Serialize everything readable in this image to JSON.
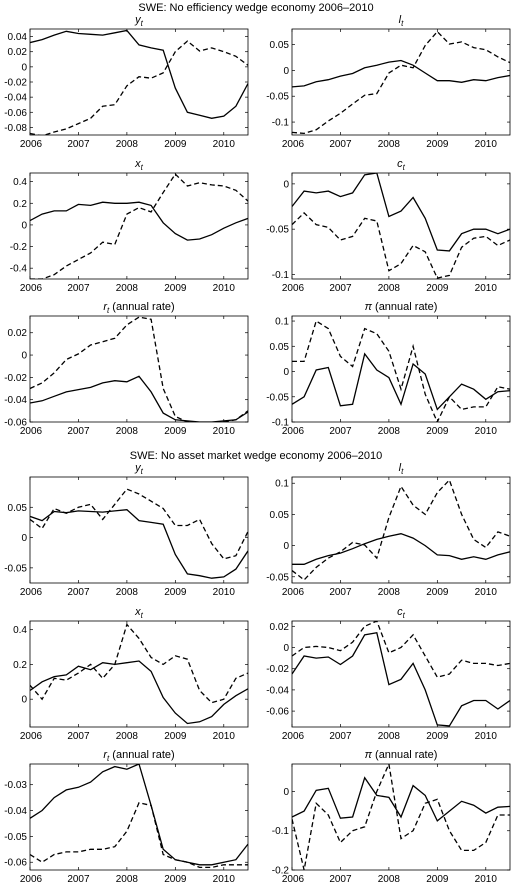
{
  "sections": [
    {
      "title": "SWE: No efficiency wedge economy 2006–2010"
    },
    {
      "title": "SWE: No asset market wedge economy 2006–2010"
    }
  ],
  "chart_data": [
    {
      "type": "line",
      "title": "y_t",
      "sub": "t",
      "xlim": [
        2006,
        2010.5
      ],
      "xticks": [
        2006,
        2007,
        2008,
        2009,
        2010
      ],
      "ylim": [
        -0.09,
        0.05
      ],
      "yticks": [
        -0.08,
        -0.06,
        -0.04,
        -0.02,
        0,
        0.02,
        0.04
      ],
      "x": [
        2006,
        2006.25,
        2006.5,
        2006.75,
        2007,
        2007.25,
        2007.5,
        2007.75,
        2008,
        2008.25,
        2008.5,
        2008.75,
        2009,
        2009.25,
        2009.5,
        2009.75,
        2010,
        2010.25,
        2010.5
      ],
      "series": [
        {
          "style": "solid",
          "values": [
            0.032,
            0.036,
            0.042,
            0.047,
            0.044,
            0.043,
            0.042,
            0.045,
            0.048,
            0.029,
            0.025,
            0.022,
            -0.028,
            -0.06,
            -0.064,
            -0.068,
            -0.065,
            -0.052,
            -0.022
          ]
        },
        {
          "style": "dashed",
          "values": [
            -0.088,
            -0.091,
            -0.086,
            -0.082,
            -0.075,
            -0.068,
            -0.052,
            -0.05,
            -0.025,
            -0.013,
            -0.015,
            -0.008,
            0.02,
            0.034,
            0.021,
            0.025,
            0.02,
            0.014,
            0.002
          ]
        }
      ]
    },
    {
      "type": "line",
      "title": "l_t",
      "sub": "t",
      "xlim": [
        2006,
        2010.5
      ],
      "xticks": [
        2006,
        2007,
        2008,
        2009,
        2010
      ],
      "ylim": [
        -0.125,
        0.08
      ],
      "yticks": [
        -0.1,
        -0.05,
        0,
        0.05
      ],
      "x": [
        2006,
        2006.25,
        2006.5,
        2006.75,
        2007,
        2007.25,
        2007.5,
        2007.75,
        2008,
        2008.25,
        2008.5,
        2008.75,
        2009,
        2009.25,
        2009.5,
        2009.75,
        2010,
        2010.25,
        2010.5
      ],
      "series": [
        {
          "style": "solid",
          "values": [
            -0.032,
            -0.03,
            -0.022,
            -0.018,
            -0.011,
            -0.006,
            0.005,
            0.01,
            0.016,
            0.019,
            0.01,
            -0.005,
            -0.02,
            -0.02,
            -0.023,
            -0.018,
            -0.02,
            -0.014,
            -0.01
          ]
        },
        {
          "style": "dashed",
          "values": [
            -0.12,
            -0.122,
            -0.115,
            -0.098,
            -0.083,
            -0.065,
            -0.048,
            -0.045,
            -0.005,
            0.01,
            0.005,
            0.048,
            0.075,
            0.051,
            0.055,
            0.044,
            0.04,
            0.026,
            0.015
          ]
        }
      ]
    },
    {
      "type": "line",
      "title": "x_t",
      "sub": "t",
      "xlim": [
        2006,
        2010.5
      ],
      "xticks": [
        2006,
        2007,
        2008,
        2009,
        2010
      ],
      "ylim": [
        -0.5,
        0.48
      ],
      "yticks": [
        -0.4,
        -0.2,
        0,
        0.2,
        0.4
      ],
      "x": [
        2006,
        2006.25,
        2006.5,
        2006.75,
        2007,
        2007.25,
        2007.5,
        2007.75,
        2008,
        2008.25,
        2008.5,
        2008.75,
        2009,
        2009.25,
        2009.5,
        2009.75,
        2010,
        2010.25,
        2010.5
      ],
      "series": [
        {
          "style": "solid",
          "values": [
            0.04,
            0.1,
            0.13,
            0.13,
            0.19,
            0.18,
            0.21,
            0.2,
            0.2,
            0.21,
            0.18,
            0.02,
            -0.08,
            -0.14,
            -0.13,
            -0.09,
            -0.03,
            0.02,
            0.06
          ]
        },
        {
          "style": "dashed",
          "values": [
            -0.5,
            -0.5,
            -0.46,
            -0.38,
            -0.32,
            -0.26,
            -0.16,
            -0.18,
            0.1,
            0.16,
            0.12,
            0.3,
            0.47,
            0.36,
            0.39,
            0.37,
            0.36,
            0.32,
            0.22
          ]
        }
      ]
    },
    {
      "type": "line",
      "title": "c_t",
      "sub": "t",
      "xlim": [
        2006,
        2010.5
      ],
      "xticks": [
        2006,
        2007,
        2008,
        2009,
        2010
      ],
      "ylim": [
        -0.105,
        0.012
      ],
      "yticks": [
        -0.1,
        -0.05,
        0
      ],
      "x": [
        2006,
        2006.25,
        2006.5,
        2006.75,
        2007,
        2007.25,
        2007.5,
        2007.75,
        2008,
        2008.25,
        2008.5,
        2008.75,
        2009,
        2009.25,
        2009.5,
        2009.75,
        2010,
        2010.25,
        2010.5
      ],
      "series": [
        {
          "style": "solid",
          "values": [
            -0.025,
            -0.008,
            -0.01,
            -0.008,
            -0.014,
            -0.01,
            0.01,
            0.012,
            -0.036,
            -0.03,
            -0.015,
            -0.038,
            -0.073,
            -0.074,
            -0.055,
            -0.05,
            -0.05,
            -0.055,
            -0.05
          ]
        },
        {
          "style": "dashed",
          "values": [
            -0.045,
            -0.032,
            -0.045,
            -0.048,
            -0.062,
            -0.058,
            -0.038,
            -0.041,
            -0.096,
            -0.088,
            -0.068,
            -0.075,
            -0.104,
            -0.101,
            -0.07,
            -0.06,
            -0.058,
            -0.068,
            -0.062
          ]
        }
      ]
    },
    {
      "type": "line",
      "title": "r_t (annual rate)",
      "sub": "t",
      "xlim": [
        2006,
        2010.5
      ],
      "xticks": [
        2006,
        2007,
        2008,
        2009,
        2010
      ],
      "ylim": [
        -0.06,
        0.035
      ],
      "yticks": [
        -0.06,
        -0.04,
        -0.02,
        0,
        0.02
      ],
      "x": [
        2006,
        2006.25,
        2006.5,
        2006.75,
        2007,
        2007.25,
        2007.5,
        2007.75,
        2008,
        2008.25,
        2008.5,
        2008.75,
        2009,
        2009.25,
        2009.5,
        2009.75,
        2010,
        2010.25,
        2010.5
      ],
      "series": [
        {
          "style": "solid",
          "values": [
            -0.043,
            -0.041,
            -0.037,
            -0.033,
            -0.031,
            -0.029,
            -0.025,
            -0.023,
            -0.024,
            -0.019,
            -0.033,
            -0.052,
            -0.058,
            -0.059,
            -0.06,
            -0.06,
            -0.059,
            -0.058,
            -0.051
          ]
        },
        {
          "style": "dashed",
          "values": [
            -0.03,
            -0.025,
            -0.016,
            -0.004,
            0.001,
            0.009,
            0.012,
            0.015,
            0.027,
            0.034,
            0.032,
            -0.03,
            -0.055,
            -0.06,
            -0.061,
            -0.061,
            -0.06,
            -0.058,
            -0.05
          ]
        }
      ]
    },
    {
      "type": "line",
      "title": "π (annual rate)",
      "sub": "",
      "xlim": [
        2006,
        2010.5
      ],
      "xticks": [
        2006,
        2007,
        2008,
        2009,
        2010
      ],
      "ylim": [
        -0.1,
        0.11
      ],
      "yticks": [
        -0.1,
        -0.05,
        0,
        0.05,
        0.1
      ],
      "x": [
        2006,
        2006.25,
        2006.5,
        2006.75,
        2007,
        2007.25,
        2007.5,
        2007.75,
        2008,
        2008.25,
        2008.5,
        2008.75,
        2009,
        2009.25,
        2009.5,
        2009.75,
        2010,
        2010.25,
        2010.5
      ],
      "series": [
        {
          "style": "solid",
          "values": [
            -0.065,
            -0.05,
            0.003,
            0.008,
            -0.068,
            -0.065,
            0.035,
            0.003,
            -0.012,
            -0.065,
            0.015,
            -0.005,
            -0.075,
            -0.05,
            -0.025,
            -0.035,
            -0.055,
            -0.04,
            -0.038
          ]
        },
        {
          "style": "dashed",
          "values": [
            0.02,
            0.02,
            0.1,
            0.085,
            0.03,
            0.01,
            0.085,
            0.075,
            0.04,
            -0.035,
            0.05,
            -0.045,
            -0.1,
            -0.05,
            -0.075,
            -0.07,
            -0.07,
            -0.03,
            -0.035
          ]
        }
      ]
    },
    {
      "type": "line",
      "title": "y_t",
      "sub": "t",
      "xlim": [
        2006,
        2010.5
      ],
      "xticks": [
        2006,
        2007,
        2008,
        2009,
        2010
      ],
      "ylim": [
        -0.075,
        0.1
      ],
      "yticks": [
        -0.05,
        0,
        0.05
      ],
      "x": [
        2006,
        2006.25,
        2006.5,
        2006.75,
        2007,
        2007.25,
        2007.5,
        2007.75,
        2008,
        2008.25,
        2008.5,
        2008.75,
        2009,
        2009.25,
        2009.5,
        2009.75,
        2010,
        2010.25,
        2010.5
      ],
      "series": [
        {
          "style": "solid",
          "values": [
            0.035,
            0.028,
            0.043,
            0.041,
            0.044,
            0.043,
            0.042,
            0.044,
            0.046,
            0.028,
            0.025,
            0.022,
            -0.028,
            -0.06,
            -0.063,
            -0.067,
            -0.065,
            -0.052,
            -0.022
          ]
        },
        {
          "style": "dashed",
          "values": [
            0.03,
            0.015,
            0.048,
            0.04,
            0.05,
            0.055,
            0.03,
            0.055,
            0.08,
            0.072,
            0.06,
            0.048,
            0.02,
            0.02,
            0.03,
            -0.01,
            -0.035,
            -0.03,
            0.01
          ]
        }
      ]
    },
    {
      "type": "line",
      "title": "l_t",
      "sub": "t",
      "xlim": [
        2006,
        2010.5
      ],
      "xticks": [
        2006,
        2007,
        2008,
        2009,
        2010
      ],
      "ylim": [
        -0.06,
        0.11
      ],
      "yticks": [
        -0.05,
        0,
        0.05,
        0.1
      ],
      "x": [
        2006,
        2006.25,
        2006.5,
        2006.75,
        2007,
        2007.25,
        2007.5,
        2007.75,
        2008,
        2008.25,
        2008.5,
        2008.75,
        2009,
        2009.25,
        2009.5,
        2009.75,
        2010,
        2010.25,
        2010.5
      ],
      "series": [
        {
          "style": "solid",
          "values": [
            -0.03,
            -0.03,
            -0.022,
            -0.016,
            -0.012,
            -0.005,
            0.003,
            0.01,
            0.015,
            0.019,
            0.012,
            0.0,
            -0.015,
            -0.016,
            -0.022,
            -0.018,
            -0.022,
            -0.015,
            -0.01
          ]
        },
        {
          "style": "dashed",
          "values": [
            -0.04,
            -0.055,
            -0.035,
            -0.02,
            -0.01,
            0.005,
            0.001,
            -0.02,
            0.045,
            0.095,
            0.065,
            0.05,
            0.085,
            0.105,
            0.05,
            0.01,
            -0.003,
            0.022,
            0.015
          ]
        }
      ]
    },
    {
      "type": "line",
      "title": "x_t",
      "sub": "t",
      "xlim": [
        2006,
        2010.5
      ],
      "xticks": [
        2006,
        2007,
        2008,
        2009,
        2010
      ],
      "ylim": [
        -0.16,
        0.45
      ],
      "yticks": [
        0,
        0.2,
        0.4
      ],
      "x": [
        2006,
        2006.25,
        2006.5,
        2006.75,
        2007,
        2007.25,
        2007.5,
        2007.75,
        2008,
        2008.25,
        2008.5,
        2008.75,
        2009,
        2009.25,
        2009.5,
        2009.75,
        2010,
        2010.25,
        2010.5
      ],
      "series": [
        {
          "style": "solid",
          "values": [
            0.05,
            0.1,
            0.13,
            0.14,
            0.19,
            0.17,
            0.21,
            0.2,
            0.21,
            0.22,
            0.16,
            0.01,
            -0.08,
            -0.14,
            -0.13,
            -0.1,
            -0.03,
            0.02,
            0.06
          ]
        },
        {
          "style": "dashed",
          "values": [
            0.08,
            0.0,
            0.12,
            0.11,
            0.15,
            0.2,
            0.12,
            0.2,
            0.43,
            0.35,
            0.24,
            0.2,
            0.25,
            0.23,
            0.05,
            -0.02,
            0.0,
            0.12,
            0.15
          ]
        }
      ]
    },
    {
      "type": "line",
      "title": "c_t",
      "sub": "t",
      "xlim": [
        2006,
        2010.5
      ],
      "xticks": [
        2006,
        2007,
        2008,
        2009,
        2010
      ],
      "ylim": [
        -0.075,
        0.025
      ],
      "yticks": [
        -0.06,
        -0.04,
        -0.02,
        0,
        0.02
      ],
      "x": [
        2006,
        2006.25,
        2006.5,
        2006.75,
        2007,
        2007.25,
        2007.5,
        2007.75,
        2008,
        2008.25,
        2008.5,
        2008.75,
        2009,
        2009.25,
        2009.5,
        2009.75,
        2010,
        2010.25,
        2010.5
      ],
      "series": [
        {
          "style": "solid",
          "values": [
            -0.025,
            -0.008,
            -0.01,
            -0.009,
            -0.016,
            -0.008,
            0.012,
            0.014,
            -0.035,
            -0.03,
            -0.015,
            -0.04,
            -0.073,
            -0.074,
            -0.055,
            -0.05,
            -0.05,
            -0.058,
            -0.05
          ]
        },
        {
          "style": "dashed",
          "values": [
            -0.008,
            0.0,
            0.001,
            0.0,
            -0.003,
            0.005,
            0.02,
            0.025,
            -0.005,
            0.0,
            0.012,
            -0.008,
            -0.028,
            -0.025,
            -0.012,
            -0.015,
            -0.015,
            -0.017,
            -0.015
          ]
        }
      ]
    },
    {
      "type": "line",
      "title": "r_t (annual rate)",
      "sub": "t",
      "xlim": [
        2006,
        2010.5
      ],
      "xticks": [
        2006,
        2007,
        2008,
        2009,
        2010
      ],
      "ylim": [
        -0.063,
        -0.022
      ],
      "yticks": [
        -0.06,
        -0.05,
        -0.04,
        -0.03
      ],
      "x": [
        2006,
        2006.25,
        2006.5,
        2006.75,
        2007,
        2007.25,
        2007.5,
        2007.75,
        2008,
        2008.25,
        2008.5,
        2008.75,
        2009,
        2009.25,
        2009.5,
        2009.75,
        2010,
        2010.25,
        2010.5
      ],
      "series": [
        {
          "style": "solid",
          "values": [
            -0.043,
            -0.04,
            -0.035,
            -0.032,
            -0.031,
            -0.029,
            -0.025,
            -0.023,
            -0.024,
            -0.022,
            -0.038,
            -0.055,
            -0.059,
            -0.06,
            -0.061,
            -0.061,
            -0.06,
            -0.059,
            -0.053
          ]
        },
        {
          "style": "dashed",
          "values": [
            -0.057,
            -0.06,
            -0.057,
            -0.056,
            -0.056,
            -0.055,
            -0.055,
            -0.054,
            -0.048,
            -0.037,
            -0.038,
            -0.057,
            -0.059,
            -0.06,
            -0.062,
            -0.062,
            -0.061,
            -0.061,
            -0.061
          ]
        }
      ]
    },
    {
      "type": "line",
      "title": "π (annual rate)",
      "sub": "",
      "xlim": [
        2006,
        2010.5
      ],
      "xticks": [
        2006,
        2007,
        2008,
        2009,
        2010
      ],
      "ylim": [
        -0.2,
        0.07
      ],
      "yticks": [
        -0.2,
        -0.1,
        0
      ],
      "x": [
        2006,
        2006.25,
        2006.5,
        2006.75,
        2007,
        2007.25,
        2007.5,
        2007.75,
        2008,
        2008.25,
        2008.5,
        2008.75,
        2009,
        2009.25,
        2009.5,
        2009.75,
        2010,
        2010.25,
        2010.5
      ],
      "series": [
        {
          "style": "solid",
          "values": [
            -0.065,
            -0.05,
            0.003,
            0.008,
            -0.068,
            -0.065,
            0.035,
            -0.01,
            -0.015,
            -0.065,
            0.015,
            -0.01,
            -0.075,
            -0.05,
            -0.025,
            -0.035,
            -0.055,
            -0.04,
            -0.038
          ]
        },
        {
          "style": "dashed",
          "values": [
            -0.07,
            -0.2,
            -0.03,
            -0.06,
            -0.13,
            -0.1,
            -0.09,
            0.0,
            0.07,
            -0.12,
            -0.1,
            -0.03,
            -0.02,
            -0.1,
            -0.15,
            -0.15,
            -0.13,
            -0.06,
            -0.06
          ]
        }
      ]
    }
  ]
}
